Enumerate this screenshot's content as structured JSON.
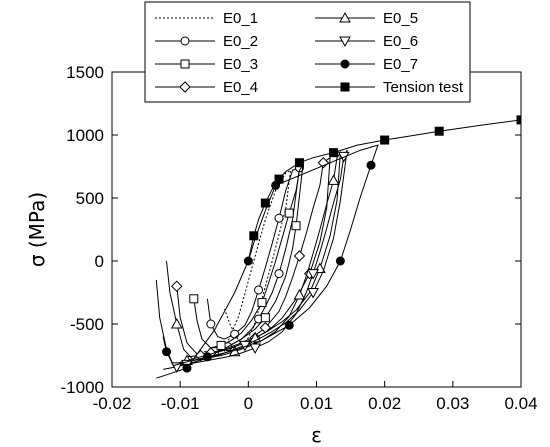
{
  "chart_data": {
    "type": "line",
    "xlabel": "ε",
    "ylabel": "σ (MPa)",
    "xlim": [
      -0.02,
      0.04
    ],
    "ylim": [
      -1000,
      1500
    ],
    "x_ticks": [
      -0.02,
      -0.01,
      0,
      0.01,
      0.02,
      0.03,
      0.04
    ],
    "x_tick_labels": [
      "-0.02",
      "-0.01",
      "0",
      "0.01",
      "0.02",
      "0.03",
      "0.04"
    ],
    "y_ticks": [
      -1000,
      -500,
      0,
      500,
      1000,
      1500
    ],
    "y_tick_labels": [
      "-1000",
      "-500",
      "0",
      "500",
      "1000",
      "1500"
    ],
    "grid": false,
    "legend_position": "top-center",
    "series": [
      {
        "name": "E0_1",
        "marker": "none",
        "dashed": true,
        "x": [
          -0.0035,
          -0.003,
          -0.0015,
          -0.0005,
          0.0005,
          0.0015,
          0.0025,
          0.004,
          0.0055,
          0.0062,
          0.0055,
          0.0035,
          0.002,
          0.0008,
          -0.0003,
          -0.001,
          -0.0018,
          -0.0027,
          -0.0035
        ],
        "y": [
          -720,
          -640,
          -450,
          -260,
          -60,
          140,
          330,
          560,
          700,
          720,
          420,
          0,
          -300,
          -520,
          -640,
          -660,
          -600,
          -500,
          -380
        ]
      },
      {
        "name": "E0_2",
        "marker": "circle",
        "x": [
          -0.0045,
          -0.003,
          -0.001,
          0.0005,
          0.0015,
          0.0025,
          0.0035,
          0.0045,
          0.0055,
          0.0065,
          0.0075,
          0.0065,
          0.0055,
          0.0045,
          0.0035,
          0.0025,
          0.0015,
          0.0005,
          -0.0005,
          -0.002,
          -0.0035,
          -0.0045,
          -0.0055,
          -0.006
        ],
        "y": [
          -700,
          -680,
          -620,
          -540,
          -460,
          -360,
          -250,
          -100,
          100,
          330,
          740,
          720,
          560,
          340,
          140,
          -50,
          -230,
          -400,
          -510,
          -580,
          -620,
          -600,
          -500,
          -300
        ]
      },
      {
        "name": "E0_3",
        "marker": "square",
        "x": [
          -0.0065,
          -0.005,
          -0.003,
          -0.001,
          0.001,
          0.0025,
          0.004,
          0.0055,
          0.0065,
          0.007,
          0.008,
          0.0075,
          0.007,
          0.006,
          0.005,
          0.004,
          0.003,
          0.002,
          0.0005,
          -0.001,
          -0.0025,
          -0.004,
          -0.0055,
          -0.0068,
          -0.0075,
          -0.008
        ],
        "y": [
          -720,
          -720,
          -680,
          -620,
          -540,
          -450,
          -320,
          -120,
          100,
          280,
          760,
          720,
          560,
          380,
          190,
          0,
          -170,
          -330,
          -470,
          -570,
          -630,
          -670,
          -690,
          -620,
          -480,
          -300
        ]
      },
      {
        "name": "E0_4",
        "marker": "diamond",
        "x": [
          -0.009,
          -0.007,
          -0.005,
          -0.003,
          -0.001,
          0.001,
          0.003,
          0.005,
          0.007,
          0.009,
          0.0105,
          0.0115,
          0.012,
          0.011,
          0.0105,
          0.0095,
          0.0085,
          0.0075,
          0.0065,
          0.0055,
          0.0045,
          0.0025,
          0.0005,
          -0.0015,
          -0.0035,
          -0.0055,
          -0.0075,
          -0.009,
          -0.01,
          -0.0105
        ],
        "y": [
          -760,
          -750,
          -730,
          -700,
          -660,
          -610,
          -550,
          -450,
          -300,
          -100,
          150,
          420,
          820,
          780,
          600,
          420,
          220,
          40,
          -130,
          -280,
          -400,
          -530,
          -610,
          -660,
          -700,
          -730,
          -740,
          -650,
          -450,
          -200
        ]
      },
      {
        "name": "E0_5",
        "marker": "triangle-up",
        "x": [
          -0.011,
          -0.009,
          -0.007,
          -0.005,
          -0.003,
          -0.001,
          0.001,
          0.003,
          0.005,
          0.007,
          0.009,
          0.0105,
          0.012,
          0.013,
          0.0135,
          0.013,
          0.0125,
          0.0115,
          0.0105,
          0.0095,
          0.0085,
          0.0075,
          0.006,
          0.004,
          0.002,
          0,
          -0.002,
          -0.004,
          -0.006,
          -0.008,
          -0.0095,
          -0.0105,
          -0.0115,
          -0.012
        ],
        "y": [
          -820,
          -790,
          -760,
          -730,
          -700,
          -660,
          -610,
          -550,
          -480,
          -390,
          -250,
          -60,
          200,
          480,
          860,
          820,
          640,
          450,
          250,
          60,
          -120,
          -270,
          -440,
          -560,
          -630,
          -680,
          -720,
          -750,
          -770,
          -790,
          -700,
          -500,
          -250,
          0
        ]
      },
      {
        "name": "E0_6",
        "marker": "triangle-down",
        "x": [
          -0.0125,
          -0.0105,
          -0.0085,
          -0.0065,
          -0.0045,
          -0.0025,
          -0.0005,
          0.0015,
          0.0035,
          0.0055,
          0.0075,
          0.0095,
          0.011,
          0.0125,
          0.0135,
          0.0145,
          0.014,
          0.0135,
          0.0125,
          0.0115,
          0.0105,
          0.0095,
          0.0085,
          0.007,
          0.005,
          0.003,
          0.001,
          -0.001,
          -0.003,
          -0.005,
          -0.007,
          -0.009,
          -0.011,
          -0.012,
          -0.013,
          -0.0135
        ],
        "y": [
          -860,
          -840,
          -810,
          -780,
          -750,
          -710,
          -670,
          -620,
          -560,
          -490,
          -390,
          -250,
          -80,
          180,
          480,
          880,
          830,
          650,
          460,
          260,
          70,
          -100,
          -250,
          -420,
          -560,
          -640,
          -690,
          -730,
          -760,
          -780,
          -800,
          -820,
          -830,
          -700,
          -450,
          -150
        ]
      },
      {
        "name": "E0_7",
        "marker": "circle-filled",
        "x": [
          -0.0125,
          -0.012,
          -0.011,
          -0.009,
          -0.006,
          -0.002,
          0.002,
          0.006,
          0.009,
          0.0115,
          0.0135,
          0.015,
          0.0165,
          0.018,
          0.019,
          0.0165,
          0.004,
          0.0025,
          0.001,
          0,
          -0.002,
          -0.005,
          -0.009,
          -0.0135
        ],
        "y": [
          -600,
          -720,
          -830,
          -800,
          -760,
          -710,
          -630,
          -510,
          -370,
          -200,
          0,
          250,
          520,
          760,
          920,
          880,
          600,
          400,
          180,
          0,
          -250,
          -550,
          -850,
          -930
        ]
      },
      {
        "name": "Tension test",
        "marker": "square-filled",
        "x": [
          0,
          0.0008,
          0.0015,
          0.0025,
          0.0035,
          0.0045,
          0.0055,
          0.0075,
          0.0095,
          0.0125,
          0.016,
          0.02,
          0.0235,
          0.028,
          0.0345,
          0.04
        ],
        "y": [
          0,
          200,
          330,
          460,
          570,
          650,
          710,
          780,
          820,
          860,
          920,
          960,
          990,
          1030,
          1080,
          1120
        ]
      }
    ]
  }
}
